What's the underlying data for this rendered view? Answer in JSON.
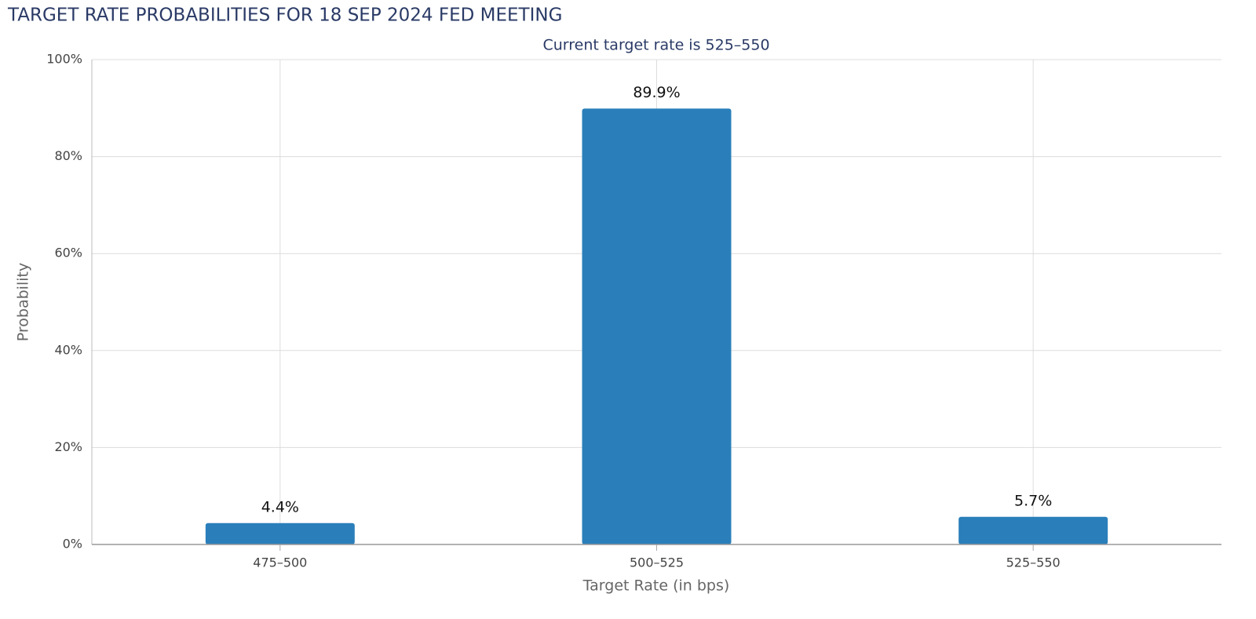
{
  "chart_data": {
    "type": "bar",
    "title": "TARGET RATE PROBABILITIES FOR 18 SEP 2024 FED MEETING",
    "subtitle": "Current target rate is 525–550",
    "x_label": "Target Rate (in bps)",
    "y_label": "Probability",
    "categories": [
      "475–500",
      "500–525",
      "525–550"
    ],
    "values": [
      4.4,
      89.9,
      5.7
    ],
    "value_labels": [
      "4.4%",
      "89.9%",
      "5.7%"
    ],
    "color": "#2a7fba",
    "ylim": [
      0,
      100
    ],
    "yticks": [
      {
        "value": 0,
        "label": "0%"
      },
      {
        "value": 20,
        "label": "20%"
      },
      {
        "value": 40,
        "label": "40%"
      },
      {
        "value": 60,
        "label": "60%"
      },
      {
        "value": 80,
        "label": "80%"
      },
      {
        "value": 100,
        "label": "100%"
      }
    ],
    "grid": true
  }
}
